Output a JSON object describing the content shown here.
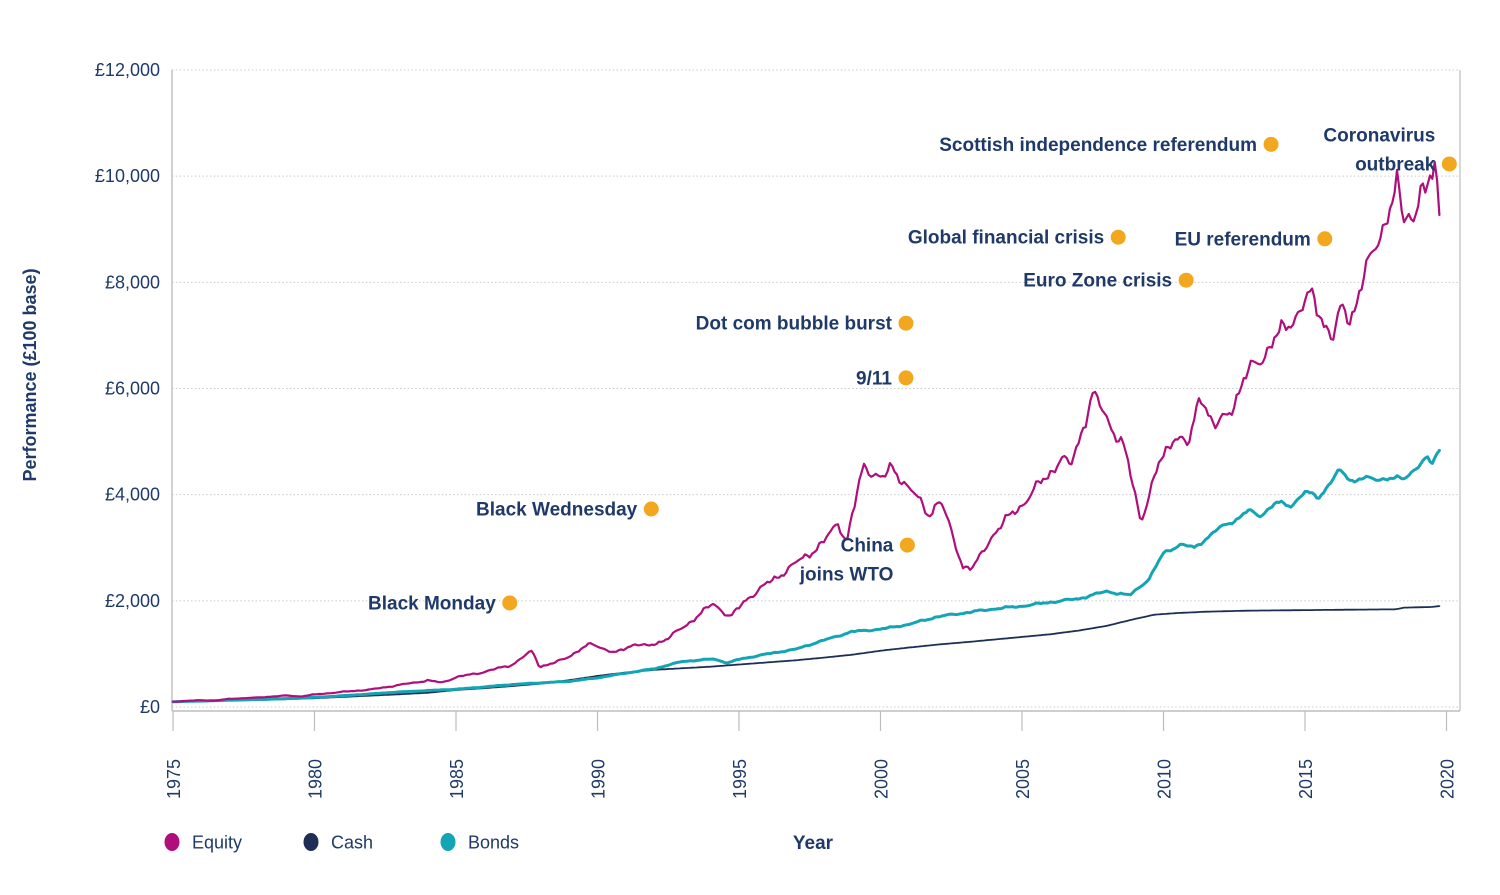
{
  "page": {
    "background": "#ffffff"
  },
  "chart_data": {
    "type": "line",
    "title": "",
    "xlabel": "Year",
    "ylabel": "Performance (£100 base)",
    "x_range": [
      1975,
      2020.5
    ],
    "y_range": [
      0,
      12000
    ],
    "grid": "horizontal-dotted",
    "text_color": "#1f3a68",
    "grid_color": "#c9c9c9",
    "axis_color": "#bdbdbd",
    "annotation_dot_color": "#f3a71e",
    "y_ticks": [
      {
        "value": 0,
        "label": "£0"
      },
      {
        "value": 2000,
        "label": "£2,000"
      },
      {
        "value": 4000,
        "label": "£4,000"
      },
      {
        "value": 6000,
        "label": "£6,000"
      },
      {
        "value": 8000,
        "label": "£8,000"
      },
      {
        "value": 10000,
        "label": "£10,000"
      },
      {
        "value": 12000,
        "label": "£12,000"
      }
    ],
    "x_ticks": [
      {
        "value": 1975,
        "label": "1975"
      },
      {
        "value": 1980,
        "label": "1980"
      },
      {
        "value": 1985,
        "label": "1985"
      },
      {
        "value": 1990,
        "label": "1990"
      },
      {
        "value": 1995,
        "label": "1995"
      },
      {
        "value": 2000,
        "label": "2000"
      },
      {
        "value": 2005,
        "label": "2005"
      },
      {
        "value": 2010,
        "label": "2010"
      },
      {
        "value": 2015,
        "label": "2015"
      },
      {
        "value": 2020,
        "label": "2020"
      }
    ],
    "series": [
      {
        "name": "Cash",
        "color": "#1e2f55",
        "width": 1.8,
        "volatility": 0.0,
        "points": [
          [
            1975,
            100
          ],
          [
            1976,
            110
          ],
          [
            1977,
            121
          ],
          [
            1978,
            133
          ],
          [
            1979,
            147
          ],
          [
            1980,
            166
          ],
          [
            1981,
            190
          ],
          [
            1982,
            215
          ],
          [
            1983,
            240
          ],
          [
            1984,
            268
          ],
          [
            1985,
            320
          ],
          [
            1986,
            355
          ],
          [
            1987,
            395
          ],
          [
            1988,
            440
          ],
          [
            1989,
            505
          ],
          [
            1990,
            585
          ],
          [
            1991,
            650
          ],
          [
            1992,
            700
          ],
          [
            1993,
            730
          ],
          [
            1994,
            760
          ],
          [
            1995,
            800
          ],
          [
            1996,
            840
          ],
          [
            1997,
            880
          ],
          [
            1998,
            930
          ],
          [
            1999,
            985
          ],
          [
            2000,
            1060
          ],
          [
            2001,
            1120
          ],
          [
            2002,
            1175
          ],
          [
            2003,
            1220
          ],
          [
            2004,
            1270
          ],
          [
            2005,
            1320
          ],
          [
            2006,
            1370
          ],
          [
            2007,
            1440
          ],
          [
            2008,
            1530
          ],
          [
            2009,
            1660
          ],
          [
            2009.7,
            1740
          ],
          [
            2010.5,
            1770
          ],
          [
            2011.5,
            1795
          ],
          [
            2013,
            1815
          ],
          [
            2015,
            1825
          ],
          [
            2017,
            1835
          ],
          [
            2018.2,
            1840
          ],
          [
            2018.5,
            1872
          ],
          [
            2019.5,
            1885
          ],
          [
            2019.8,
            1905
          ]
        ]
      },
      {
        "name": "Bonds",
        "color": "#14a5b5",
        "width": 3,
        "volatility": 0.012,
        "points": [
          [
            1975,
            100
          ],
          [
            1976,
            112
          ],
          [
            1977,
            128
          ],
          [
            1978,
            142
          ],
          [
            1979,
            158
          ],
          [
            1980,
            182
          ],
          [
            1981,
            212
          ],
          [
            1982,
            248
          ],
          [
            1983,
            283
          ],
          [
            1984,
            310
          ],
          [
            1985,
            335
          ],
          [
            1986,
            378
          ],
          [
            1987,
            424
          ],
          [
            1988,
            455
          ],
          [
            1989,
            484
          ],
          [
            1990,
            550
          ],
          [
            1991,
            638
          ],
          [
            1992,
            720
          ],
          [
            1993,
            858
          ],
          [
            1994.1,
            905
          ],
          [
            1994.6,
            830
          ],
          [
            1995,
            898
          ],
          [
            1996,
            1000
          ],
          [
            1997,
            1088
          ],
          [
            1998,
            1258
          ],
          [
            1999,
            1420
          ],
          [
            2000,
            1465
          ],
          [
            2001,
            1556
          ],
          [
            2002,
            1700
          ],
          [
            2003,
            1775
          ],
          [
            2004,
            1848
          ],
          [
            2005,
            1900
          ],
          [
            2006,
            1975
          ],
          [
            2007,
            2040
          ],
          [
            2008,
            2180
          ],
          [
            2008.8,
            2100
          ],
          [
            2009.5,
            2420
          ],
          [
            2010,
            2900
          ],
          [
            2010.6,
            3060
          ],
          [
            2011.1,
            3000
          ],
          [
            2012,
            3380
          ],
          [
            2012.6,
            3540
          ],
          [
            2013,
            3700
          ],
          [
            2013.4,
            3600
          ],
          [
            2014,
            3850
          ],
          [
            2014.5,
            3790
          ],
          [
            2015,
            4050
          ],
          [
            2015.5,
            3950
          ],
          [
            2016.2,
            4450
          ],
          [
            2016.7,
            4250
          ],
          [
            2017,
            4320
          ],
          [
            2017.5,
            4280
          ],
          [
            2018,
            4320
          ],
          [
            2018.5,
            4290
          ],
          [
            2019,
            4550
          ],
          [
            2019.3,
            4700
          ],
          [
            2019.45,
            4550
          ],
          [
            2019.8,
            4900
          ]
        ]
      },
      {
        "name": "Equity",
        "color": "#b00f7b",
        "width": 2.2,
        "volatility": 0.032,
        "points": [
          [
            1975,
            100
          ],
          [
            1975.6,
            118
          ],
          [
            1976,
            128
          ],
          [
            1976.5,
            120
          ],
          [
            1977,
            155
          ],
          [
            1978,
            178
          ],
          [
            1979,
            215
          ],
          [
            1979.5,
            200
          ],
          [
            1980,
            235
          ],
          [
            1981,
            285
          ],
          [
            1982,
            330
          ],
          [
            1983,
            415
          ],
          [
            1984,
            500
          ],
          [
            1984.5,
            460
          ],
          [
            1985,
            560
          ],
          [
            1986,
            660
          ],
          [
            1987,
            800
          ],
          [
            1987.7,
            1060
          ],
          [
            1987.95,
            760
          ],
          [
            1988.5,
            830
          ],
          [
            1989,
            960
          ],
          [
            1989.8,
            1200
          ],
          [
            1990.6,
            1010
          ],
          [
            1991.3,
            1190
          ],
          [
            1991.8,
            1140
          ],
          [
            1992.5,
            1300
          ],
          [
            1993,
            1490
          ],
          [
            1994.1,
            1950
          ],
          [
            1994.7,
            1690
          ],
          [
            1995.3,
            2050
          ],
          [
            1996,
            2320
          ],
          [
            1997,
            2700
          ],
          [
            1998,
            3100
          ],
          [
            1998.5,
            3480
          ],
          [
            1998.8,
            3120
          ],
          [
            1999.4,
            4540
          ],
          [
            2000.1,
            4300
          ],
          [
            2000.4,
            4500
          ],
          [
            2001,
            4150
          ],
          [
            2001.7,
            3620
          ],
          [
            2002.1,
            3920
          ],
          [
            2002.9,
            2660
          ],
          [
            2003.3,
            2620
          ],
          [
            2004,
            3280
          ],
          [
            2005,
            3820
          ],
          [
            2006,
            4420
          ],
          [
            2006.4,
            4700
          ],
          [
            2006.7,
            4500
          ],
          [
            2007.5,
            5880
          ],
          [
            2008.1,
            5350
          ],
          [
            2008.6,
            4900
          ],
          [
            2009.2,
            3520
          ],
          [
            2009.8,
            4500
          ],
          [
            2010.4,
            5150
          ],
          [
            2010.9,
            4900
          ],
          [
            2011.3,
            5960
          ],
          [
            2011.8,
            5230
          ],
          [
            2012.3,
            5550
          ],
          [
            2013,
            6300
          ],
          [
            2014,
            6950
          ],
          [
            2015.2,
            7740
          ],
          [
            2015.6,
            7350
          ],
          [
            2016,
            6950
          ],
          [
            2016.3,
            7500
          ],
          [
            2016.6,
            7300
          ],
          [
            2017,
            8000
          ],
          [
            2017.4,
            8500
          ],
          [
            2017.9,
            9300
          ],
          [
            2018.25,
            9800
          ],
          [
            2018.5,
            9070
          ],
          [
            2018.65,
            9400
          ],
          [
            2018.8,
            9100
          ],
          [
            2019.1,
            9950
          ],
          [
            2019.3,
            9500
          ],
          [
            2019.6,
            10270
          ],
          [
            2019.8,
            9050
          ]
        ]
      }
    ],
    "legend": [
      {
        "label": "Equity",
        "color": "#b00f7b"
      },
      {
        "label": "Cash",
        "color": "#1e2f55"
      },
      {
        "label": "Bonds",
        "color": "#14a5b5"
      }
    ],
    "annotations": [
      {
        "lines": [
          "Black Monday"
        ],
        "year": 1986.9,
        "value": 1960,
        "dot_line": 0
      },
      {
        "lines": [
          "Black Wednesday"
        ],
        "year": 1991.9,
        "value": 3730,
        "dot_line": 0
      },
      {
        "lines": [
          "Dot com bubble burst"
        ],
        "year": 2000.9,
        "value": 7230,
        "dot_line": 0
      },
      {
        "lines": [
          "9/11"
        ],
        "year": 2000.9,
        "value": 6200,
        "dot_line": 0
      },
      {
        "lines": [
          "China",
          "joins WTO"
        ],
        "year": 2000.95,
        "value": 3050,
        "dot_line": 0
      },
      {
        "lines": [
          "Global financial crisis"
        ],
        "year": 2008.4,
        "value": 8850,
        "dot_line": 0
      },
      {
        "lines": [
          "Euro Zone crisis"
        ],
        "year": 2010.8,
        "value": 8040,
        "dot_line": 0
      },
      {
        "lines": [
          "Scottish independence referendum"
        ],
        "year": 2013.8,
        "value": 10600,
        "dot_line": 0
      },
      {
        "lines": [
          "EU referendum"
        ],
        "year": 2015.7,
        "value": 8820,
        "dot_line": 0
      },
      {
        "lines": [
          "Coronavirus",
          "outbreak"
        ],
        "year": 2020.1,
        "value": 10230,
        "dot_line": 1
      }
    ]
  }
}
